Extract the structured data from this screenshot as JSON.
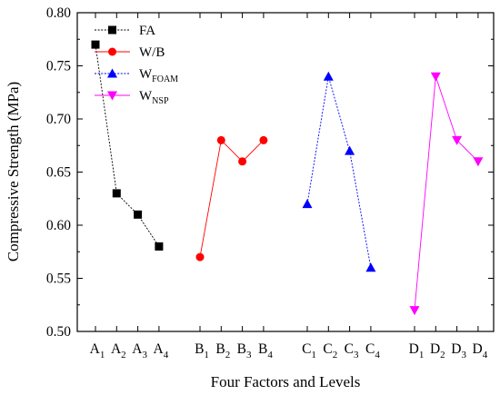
{
  "chart_data": {
    "type": "line",
    "title": "",
    "xlabel": "Four Factors and Levels",
    "ylabel": "Compressive Strength (MPa)",
    "ylim": [
      0.5,
      0.8
    ],
    "yticks": [
      "0.50",
      "0.55",
      "0.60",
      "0.65",
      "0.70",
      "0.75",
      "0.80"
    ],
    "grid": false,
    "legend_position": "top-left",
    "series": [
      {
        "name": "FA",
        "legend_main": "FA",
        "legend_sub": "",
        "color": "#000000",
        "line_style": "dotted",
        "marker": "square",
        "categories": [
          {
            "main": "A",
            "sub": "1"
          },
          {
            "main": "A",
            "sub": "2"
          },
          {
            "main": "A",
            "sub": "3"
          },
          {
            "main": "A",
            "sub": "4"
          }
        ],
        "values": [
          0.77,
          0.63,
          0.61,
          0.58
        ]
      },
      {
        "name": "W/B",
        "legend_main": "W/B",
        "legend_sub": "",
        "color": "#ff0000",
        "line_style": "solid",
        "marker": "circle",
        "categories": [
          {
            "main": "B",
            "sub": "1"
          },
          {
            "main": "B",
            "sub": "2"
          },
          {
            "main": "B",
            "sub": "3"
          },
          {
            "main": "B",
            "sub": "4"
          }
        ],
        "values": [
          0.57,
          0.68,
          0.66,
          0.68
        ]
      },
      {
        "name": "WFOAM",
        "legend_main": "W",
        "legend_sub": "FOAM",
        "color": "#0000ff",
        "line_style": "dotted",
        "marker": "triangle-up",
        "categories": [
          {
            "main": "C",
            "sub": "1"
          },
          {
            "main": "C",
            "sub": "2"
          },
          {
            "main": "C",
            "sub": "3"
          },
          {
            "main": "C",
            "sub": "4"
          }
        ],
        "values": [
          0.62,
          0.74,
          0.67,
          0.56
        ]
      },
      {
        "name": "WNSP",
        "legend_main": "W",
        "legend_sub": "NSP",
        "color": "#ff00ff",
        "line_style": "solid",
        "marker": "triangle-down",
        "categories": [
          {
            "main": "D",
            "sub": "1"
          },
          {
            "main": "D",
            "sub": "2"
          },
          {
            "main": "D",
            "sub": "3"
          },
          {
            "main": "D",
            "sub": "4"
          }
        ],
        "values": [
          0.52,
          0.74,
          0.68,
          0.66
        ]
      }
    ]
  }
}
